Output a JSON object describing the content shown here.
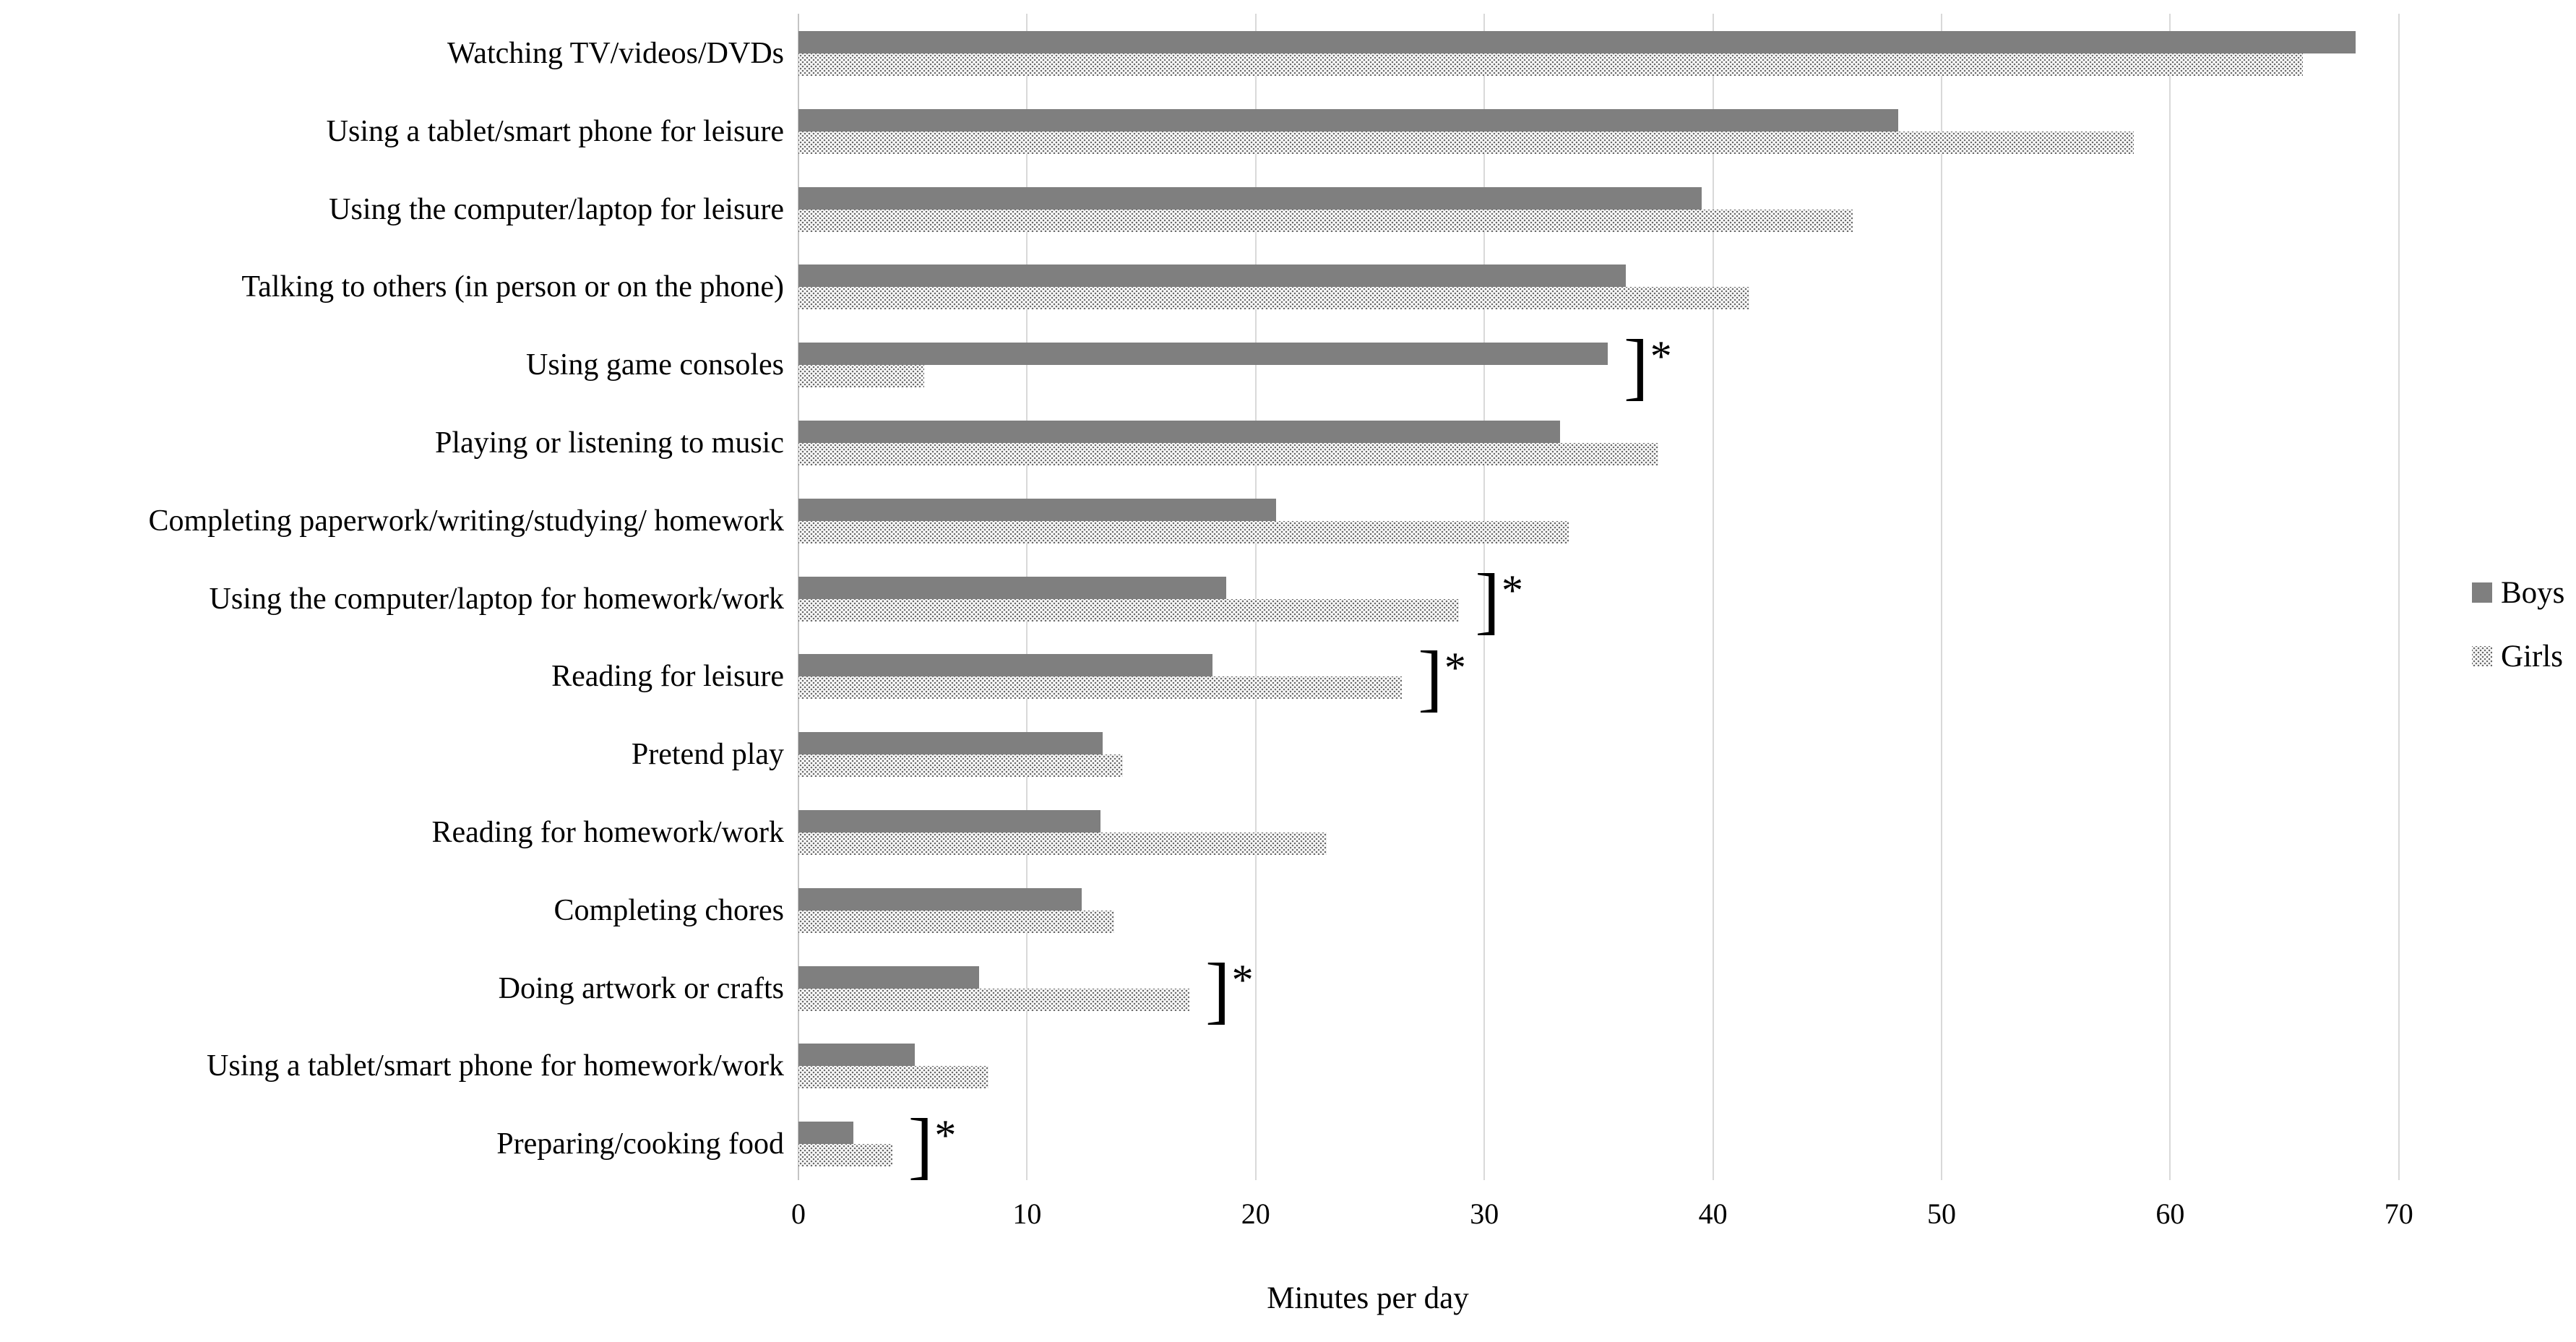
{
  "chart_data": {
    "type": "bar",
    "orientation": "horizontal",
    "title": "",
    "xlabel": "Minutes per day",
    "xlim": [
      0,
      70
    ],
    "xticks": [
      0,
      10,
      20,
      30,
      40,
      50,
      60,
      70
    ],
    "grid": true,
    "legend_position": "middle-right",
    "categories": [
      "Watching TV/videos/DVDs",
      "Using a tablet/smart phone for leisure",
      "Using the computer/laptop for leisure",
      "Talking to others (in person or on the phone)",
      "Using game consoles",
      "Playing or listening to music",
      "Completing paperwork/writing/studying/ homework",
      "Using the computer/laptop for homework/work",
      "Reading for leisure",
      "Pretend play",
      "Reading for homework/work",
      "Completing chores",
      "Doing artwork or crafts",
      "Using a tablet/smart phone for homework/work",
      "Preparing/cooking food"
    ],
    "series": [
      {
        "name": "Boys",
        "swatch": "solid-gray",
        "values": [
          68.1,
          48.1,
          39.5,
          36.2,
          35.4,
          33.3,
          20.9,
          18.7,
          18.1,
          13.3,
          13.2,
          12.4,
          7.9,
          5.1,
          2.4
        ]
      },
      {
        "name": "Girls",
        "swatch": "dotted-pattern",
        "values": [
          65.8,
          58.4,
          46.1,
          41.6,
          5.5,
          37.6,
          33.7,
          28.9,
          26.4,
          14.2,
          23.1,
          13.8,
          17.1,
          8.3,
          4.1
        ]
      }
    ],
    "significance_symbol": "]*",
    "significant_category_indices": [
      4,
      7,
      8,
      12,
      14
    ]
  },
  "colors": {
    "boys_bar": "#7F7F7F",
    "girls_dot": "#6A6A6A",
    "gridline": "#D9D9D9",
    "axis_line": "#C4C4C4",
    "text": "#000000",
    "background": "#FFFFFF"
  }
}
